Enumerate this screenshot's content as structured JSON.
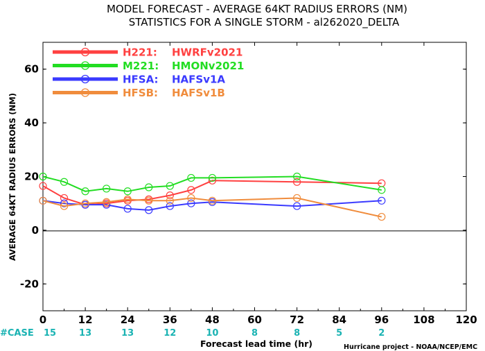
{
  "chart_data": {
    "type": "line",
    "title": "MODEL FORECAST - AVERAGE 64KT RADIUS ERRORS (NM)",
    "subtitle": "STATISTICS FOR A SINGLE STORM - al262020_DELTA",
    "xlabel": "Forecast lead time (hr)",
    "ylabel": "AVERAGE 64KT RADIUS ERRORS (NM)",
    "xlim": [
      0,
      120
    ],
    "ylim": [
      -30,
      70
    ],
    "xticks": [
      0,
      12,
      24,
      36,
      48,
      60,
      72,
      84,
      96,
      108,
      120
    ],
    "yticks": [
      -20,
      0,
      20,
      40,
      60
    ],
    "zero_line": true,
    "grid": false,
    "legend_position": "top-left",
    "case_label": "#CASE",
    "case_hours": [
      0,
      12,
      24,
      36,
      48,
      60,
      72,
      84,
      96
    ],
    "case_counts": [
      "15",
      "13",
      "13",
      "12",
      "10",
      "8",
      "8",
      "5",
      "2"
    ],
    "credit": "Hurricane project - NOAA/NCEP/EMC",
    "series": [
      {
        "code": "H221:",
        "name": "HWRFv2021",
        "color": "#ff4040",
        "x": [
          0,
          6,
          12,
          18,
          24,
          30,
          36,
          42,
          48,
          72,
          96
        ],
        "y": [
          16.5,
          12,
          9.5,
          10,
          11,
          11.5,
          13,
          15,
          18.5,
          18,
          17.5
        ]
      },
      {
        "code": "M221:",
        "name": "HMONv2021",
        "color": "#22dd22",
        "x": [
          0,
          6,
          12,
          18,
          24,
          30,
          36,
          42,
          48,
          72,
          96
        ],
        "y": [
          20,
          18,
          14.5,
          15.5,
          14.5,
          16,
          16.5,
          19.5,
          19.5,
          20,
          15
        ]
      },
      {
        "code": "HFSA:",
        "name": "HAFSv1A",
        "color": "#3a3aff",
        "x": [
          0,
          6,
          12,
          18,
          24,
          30,
          36,
          42,
          48,
          72,
          96
        ],
        "y": [
          11,
          10,
          9.5,
          9.5,
          8,
          7.5,
          9,
          10,
          10.5,
          9,
          11
        ]
      },
      {
        "code": "HFSB:",
        "name": "HAFSv1B",
        "color": "#f08c3c",
        "x": [
          0,
          6,
          12,
          18,
          24,
          30,
          36,
          42,
          48,
          72,
          96
        ],
        "y": [
          11,
          9,
          10,
          10.5,
          11.5,
          11,
          11,
          12,
          11,
          12,
          5
        ]
      }
    ]
  }
}
